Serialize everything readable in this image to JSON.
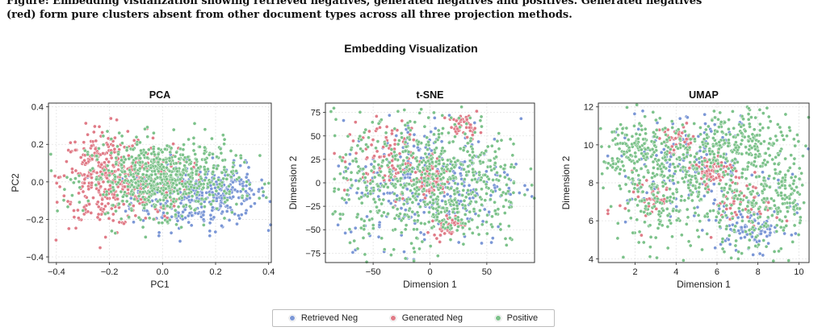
{
  "caption": {
    "line1": "Figure: Embedding visualization showing retrieved negatives, generated negatives and positives. Generated negatives",
    "line2": "(red) form pure clusters absent from other document types across all three projection methods."
  },
  "suptitle": "Embedding Visualization",
  "colors": {
    "retrieved": "#7b97d6",
    "generated": "#e07b87",
    "positive": "#7cc28a"
  },
  "legend": [
    {
      "name": "Retrieved Neg",
      "color": "#7b97d6"
    },
    {
      "name": "Generated Neg",
      "color": "#e07b87"
    },
    {
      "name": "Positive",
      "color": "#7cc28a"
    }
  ],
  "chart_data": [
    {
      "type": "scatter",
      "title": "PCA",
      "xlabel": "PC1",
      "ylabel": "PC2",
      "xlim": [
        -0.43,
        0.41
      ],
      "ylim": [
        -0.43,
        0.42
      ],
      "xticks": [
        -0.4,
        -0.2,
        0.0,
        0.2,
        0.4
      ],
      "xtick_labels": [
        "−0.4",
        "−0.2",
        "0.0",
        "0.2",
        "0.4"
      ],
      "yticks": [
        -0.4,
        -0.2,
        0.0,
        0.2,
        0.4
      ],
      "ytick_labels": [
        "−0.4",
        "−0.2",
        "0.0",
        "0.2",
        "0.4"
      ],
      "grid": true,
      "series": [
        {
          "name": "Retrieved Neg",
          "color": "#7b97d6",
          "clusters": [
            {
              "cx": 0.1,
              "cy": -0.08,
              "sx": 0.11,
              "sy": 0.09,
              "n": 260
            },
            {
              "cx": 0.25,
              "cy": -0.05,
              "sx": 0.07,
              "sy": 0.07,
              "n": 120
            }
          ]
        },
        {
          "name": "Generated Neg",
          "color": "#e07b87",
          "clusters": [
            {
              "cx": -0.22,
              "cy": 0.02,
              "sx": 0.08,
              "sy": 0.13,
              "n": 300
            },
            {
              "cx": -0.1,
              "cy": 0.0,
              "sx": 0.1,
              "sy": 0.1,
              "n": 160
            }
          ]
        },
        {
          "name": "Positive",
          "color": "#7cc28a",
          "clusters": [
            {
              "cx": 0.0,
              "cy": 0.02,
              "sx": 0.14,
              "sy": 0.1,
              "n": 700
            }
          ]
        }
      ]
    },
    {
      "type": "scatter",
      "title": "t-SNE",
      "xlabel": "Dimension 1",
      "ylabel": "Dimension 2",
      "xlim": [
        -92,
        92
      ],
      "ylim": [
        -85,
        85
      ],
      "xticks": [
        -50,
        0,
        50
      ],
      "xtick_labels": [
        "−50",
        "0",
        "50"
      ],
      "yticks": [
        -75,
        -50,
        -25,
        0,
        25,
        50,
        75
      ],
      "ytick_labels": [
        "−75",
        "−50",
        "−25",
        "0",
        "25",
        "50",
        "75"
      ],
      "grid": true,
      "series": [
        {
          "name": "Retrieved Neg",
          "color": "#7b97d6",
          "clusters": [
            {
              "cx": 0,
              "cy": 0,
              "sx": 40,
              "sy": 34,
              "n": 330
            }
          ]
        },
        {
          "name": "Generated Neg",
          "color": "#e07b87",
          "clusters": [
            {
              "cx": 0,
              "cy": 0,
              "sx": 7,
              "sy": 6,
              "n": 70
            },
            {
              "cx": 15,
              "cy": -45,
              "sx": 6,
              "sy": 6,
              "n": 40
            },
            {
              "cx": 30,
              "cy": 60,
              "sx": 7,
              "sy": 6,
              "n": 40
            },
            {
              "cx": -35,
              "cy": 25,
              "sx": 20,
              "sy": 20,
              "n": 110
            }
          ]
        },
        {
          "name": "Positive",
          "color": "#7cc28a",
          "clusters": [
            {
              "cx": 0,
              "cy": 0,
              "sx": 42,
              "sy": 36,
              "n": 750
            }
          ]
        }
      ]
    },
    {
      "type": "scatter",
      "title": "UMAP",
      "xlabel": "Dimension 1",
      "ylabel": "Dimension 2",
      "xlim": [
        0.2,
        10.5
      ],
      "ylim": [
        3.8,
        12.2
      ],
      "xticks": [
        2,
        4,
        6,
        8,
        10
      ],
      "xtick_labels": [
        "2",
        "4",
        "6",
        "8",
        "10"
      ],
      "yticks": [
        4,
        6,
        8,
        10,
        12
      ],
      "ytick_labels": [
        "4",
        "6",
        "8",
        "10",
        "12"
      ],
      "grid": true,
      "series": [
        {
          "name": "Retrieved Neg",
          "color": "#7b97d6",
          "clusters": [
            {
              "cx": 4.5,
              "cy": 9.0,
              "sx": 2.0,
              "sy": 1.3,
              "n": 180
            },
            {
              "cx": 7.8,
              "cy": 5.6,
              "sx": 0.9,
              "sy": 0.6,
              "n": 90
            }
          ]
        },
        {
          "name": "Generated Neg",
          "color": "#e07b87",
          "clusters": [
            {
              "cx": 5.7,
              "cy": 8.6,
              "sx": 0.45,
              "sy": 0.4,
              "n": 90
            },
            {
              "cx": 4.0,
              "cy": 10.2,
              "sx": 0.5,
              "sy": 0.4,
              "n": 40
            },
            {
              "cx": 7.5,
              "cy": 7.0,
              "sx": 0.8,
              "sy": 0.7,
              "n": 60
            },
            {
              "cx": 2.6,
              "cy": 7.2,
              "sx": 0.7,
              "sy": 0.7,
              "n": 40
            }
          ]
        },
        {
          "name": "Positive",
          "color": "#7cc28a",
          "clusters": [
            {
              "cx": 2.0,
              "cy": 9.5,
              "sx": 0.8,
              "sy": 1.0,
              "n": 180
            },
            {
              "cx": 5.0,
              "cy": 9.0,
              "sx": 1.3,
              "sy": 1.1,
              "n": 200
            },
            {
              "cx": 7.5,
              "cy": 10.2,
              "sx": 1.2,
              "sy": 0.9,
              "n": 200
            },
            {
              "cx": 7.6,
              "cy": 6.5,
              "sx": 1.2,
              "sy": 1.2,
              "n": 180
            },
            {
              "cx": 3.2,
              "cy": 6.5,
              "sx": 1.1,
              "sy": 1.0,
              "n": 130
            },
            {
              "cx": 9.5,
              "cy": 7.5,
              "sx": 0.5,
              "sy": 1.0,
              "n": 70
            }
          ]
        }
      ]
    }
  ]
}
